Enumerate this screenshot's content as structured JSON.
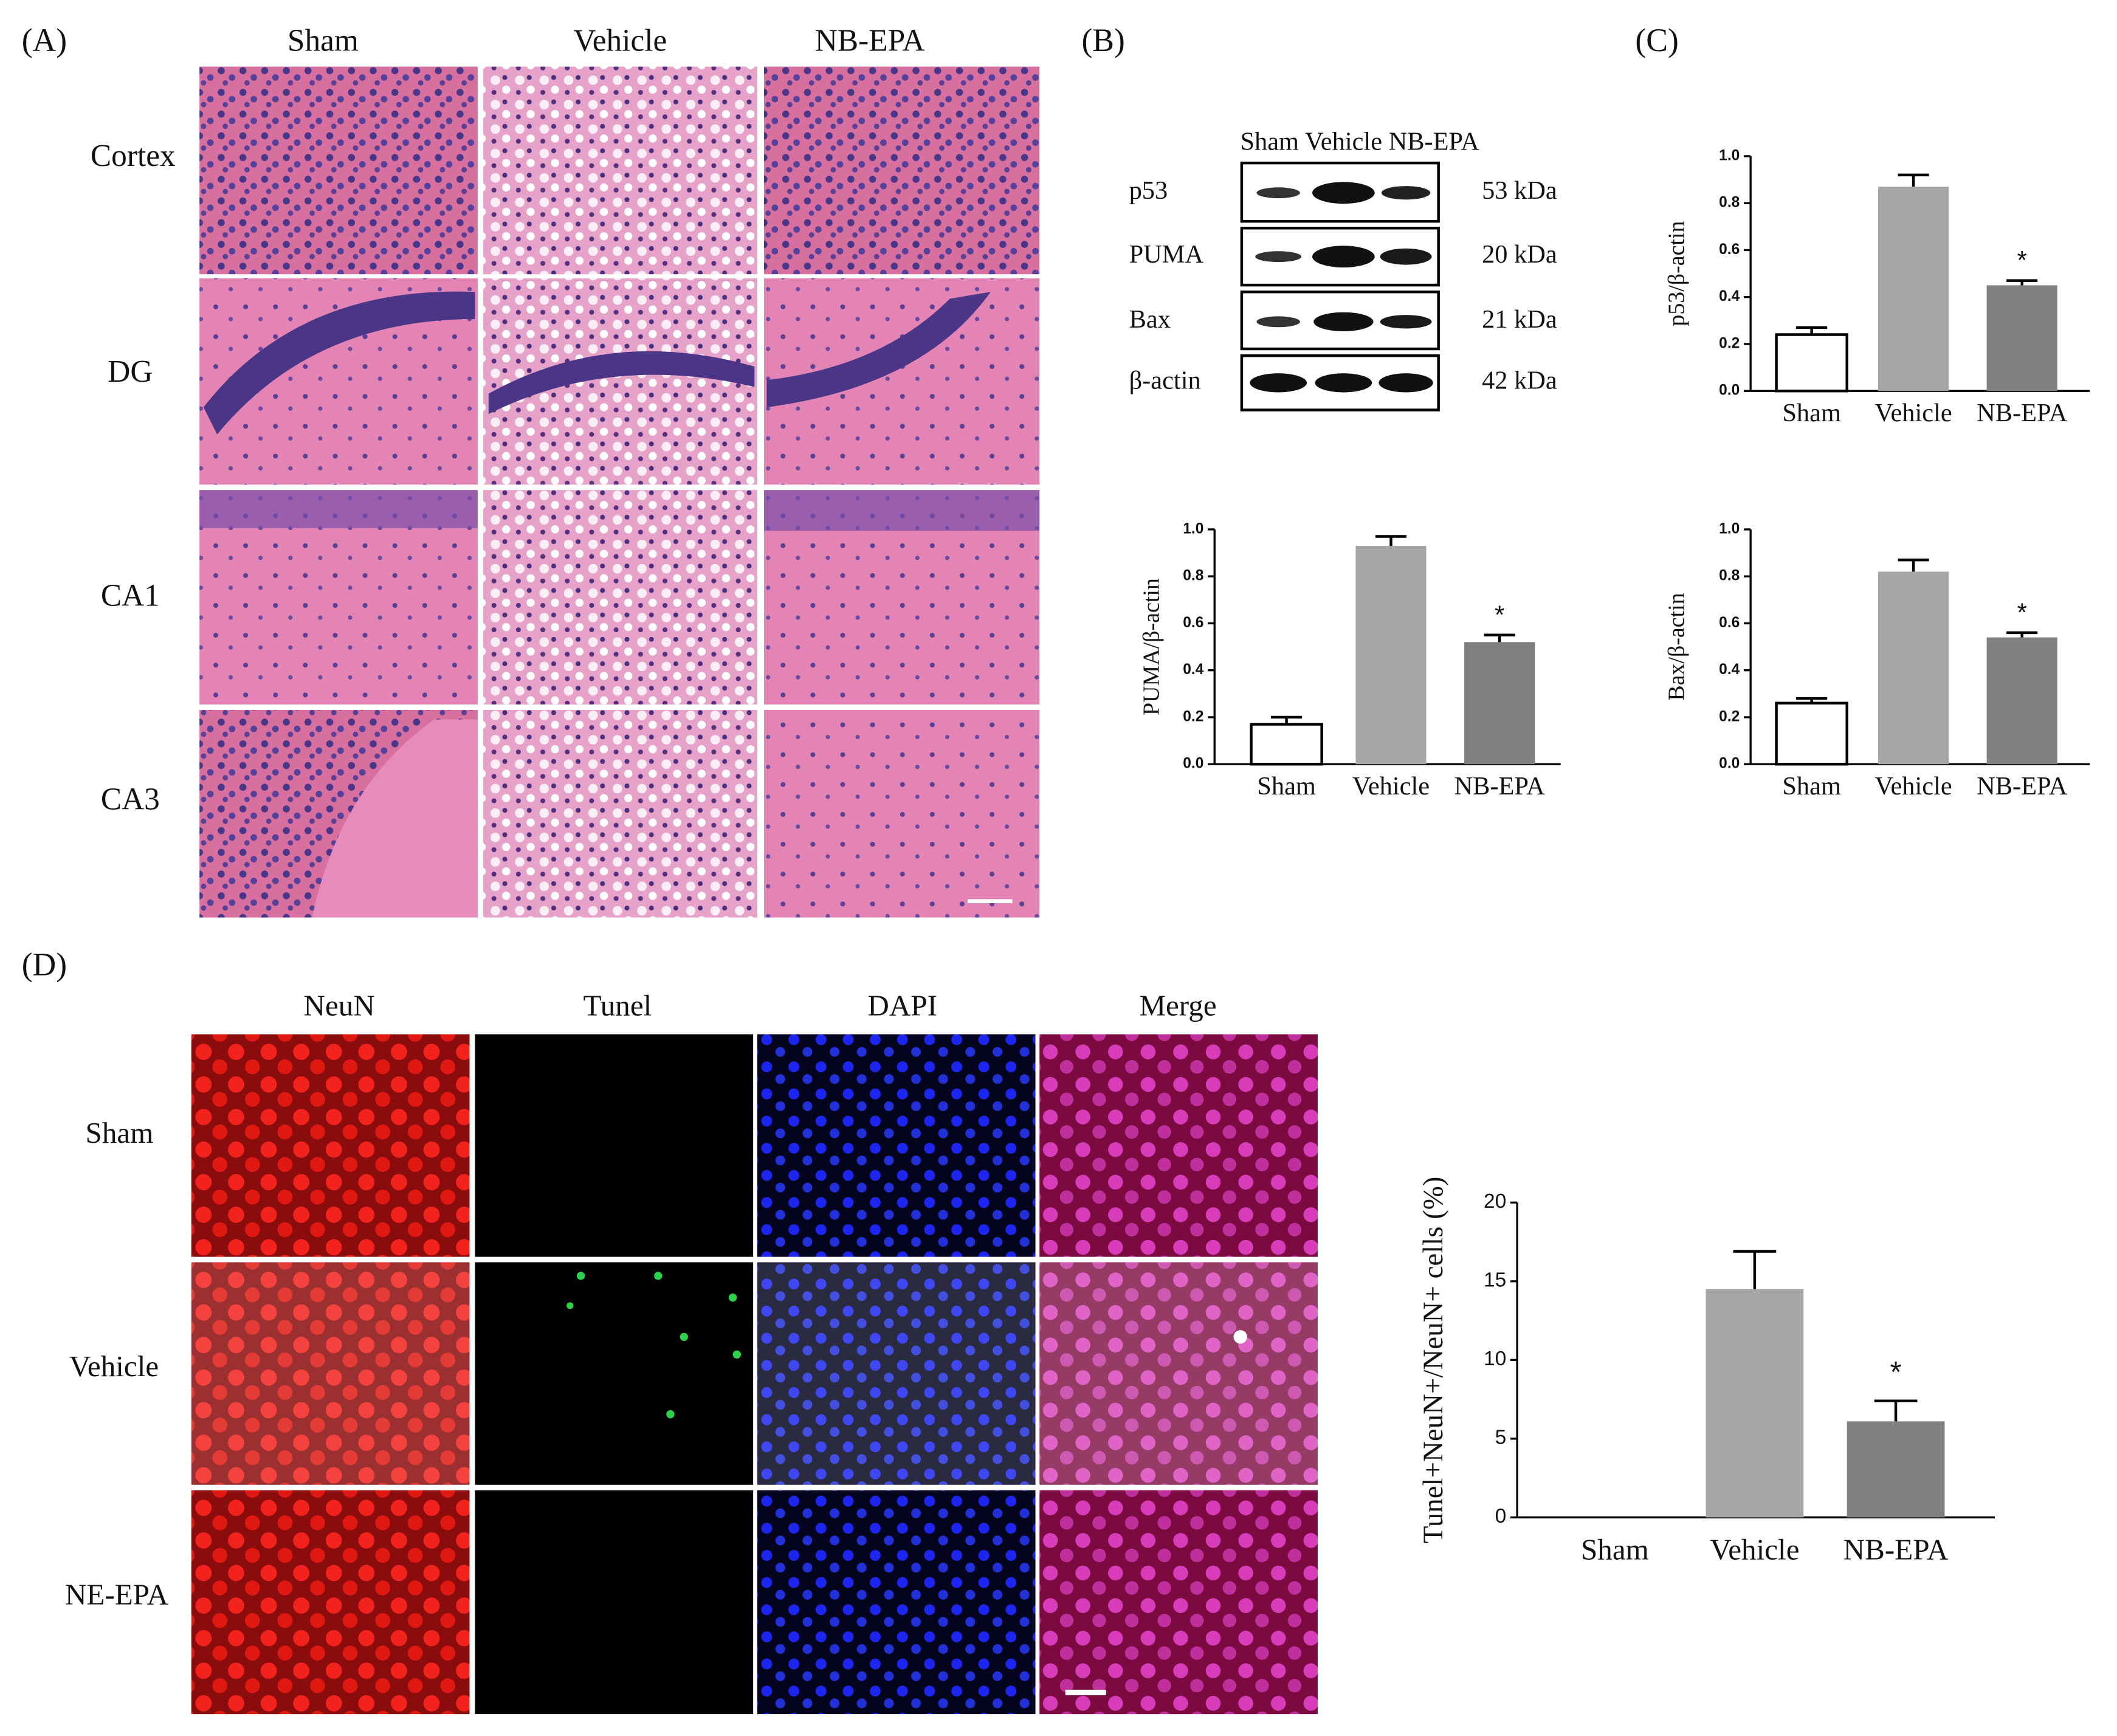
{
  "panel_labels": [
    "(A)",
    "(B)",
    "(C)",
    "(D)"
  ],
  "histology": {
    "columns": [
      "Sham",
      "Vehicle",
      "NB-EPA"
    ],
    "rows": [
      "Cortex",
      "DG",
      "CA1",
      "CA3"
    ]
  },
  "western_blot": {
    "lanes": "Sham Vehicle NB-EPA",
    "proteins": [
      "p53",
      "PUMA",
      "Bax",
      "β-actin"
    ],
    "sizes": [
      "53 kDa",
      "20 kDa",
      "21 kDa",
      "42 kDa"
    ]
  },
  "fluorescence": {
    "columns": [
      {
        "text": "NeuN",
        "color": "#e8141c"
      },
      {
        "text": "Tunel",
        "color": "#19a83a"
      },
      {
        "text": "DAPI",
        "color": "#2a2ad8"
      },
      {
        "text": "Merge",
        "color": "#111111"
      }
    ],
    "rows": [
      "Sham",
      "Vehicle",
      "NE-EPA"
    ]
  },
  "chart_data": [
    {
      "type": "bar",
      "y_label": "p53/β-actin",
      "categories": [
        "Sham",
        "Vehicle",
        "NB-EPA"
      ],
      "values": [
        0.24,
        0.87,
        0.45
      ],
      "errors": [
        0.03,
        0.05,
        0.02
      ],
      "colors": [
        "#ffffff",
        "#a7a7aa",
        "#808080"
      ],
      "ylim": [
        0,
        1
      ],
      "yticks": [
        {
          "value": 0,
          "label": "0.0"
        },
        0.2,
        0.4,
        0.6,
        0.8,
        {
          "value": 1,
          "label": "1.0"
        }
      ],
      "annotations": [
        {
          "text": "*",
          "category": "NB-EPA"
        }
      ]
    },
    {
      "type": "bar",
      "y_label": "PUMA/β-actin",
      "categories": [
        "Sham",
        "Vehicle",
        "NB-EPA"
      ],
      "values": [
        0.17,
        0.93,
        0.52
      ],
      "errors": [
        0.03,
        0.04,
        0.03
      ],
      "colors": [
        "#ffffff",
        "#a7a7aa",
        "#808080"
      ],
      "ylim": [
        0,
        1
      ],
      "yticks": [
        {
          "value": 0,
          "label": "0.0"
        },
        0.2,
        0.4,
        0.6,
        0.8,
        {
          "value": 1,
          "label": "1.0"
        }
      ],
      "annotations": [
        {
          "text": "*",
          "category": "NB-EPA"
        }
      ]
    },
    {
      "type": "bar",
      "y_label": "Bax/β-actin",
      "categories": [
        "Sham",
        "Vehicle",
        "NB-EPA"
      ],
      "values": [
        0.26,
        0.82,
        0.54
      ],
      "errors": [
        0.02,
        0.05,
        0.02
      ],
      "colors": [
        "#ffffff",
        "#a7a7aa",
        "#808080"
      ],
      "ylim": [
        0,
        1
      ],
      "yticks": [
        {
          "value": 0,
          "label": "0.0"
        },
        0.2,
        0.4,
        0.6,
        0.8,
        {
          "value": 1,
          "label": "1.0"
        }
      ],
      "annotations": [
        {
          "text": "*",
          "category": "NB-EPA"
        }
      ]
    },
    {
      "type": "bar",
      "y_label": "Tunel+NeuN+/NeuN+ cells (%)",
      "categories": [
        "Sham",
        "Vehicle",
        "NB-EPA"
      ],
      "values": [
        0,
        14.5,
        6.1
      ],
      "errors": [
        0,
        2.4,
        1.3
      ],
      "colors": [
        "#ffffff",
        "#a7a7aa",
        "#808080"
      ],
      "ylim": [
        0,
        20
      ],
      "yticks": [
        0,
        5,
        10,
        15,
        20
      ],
      "annotations": [
        {
          "text": "*",
          "category": "NB-EPA"
        }
      ]
    }
  ]
}
